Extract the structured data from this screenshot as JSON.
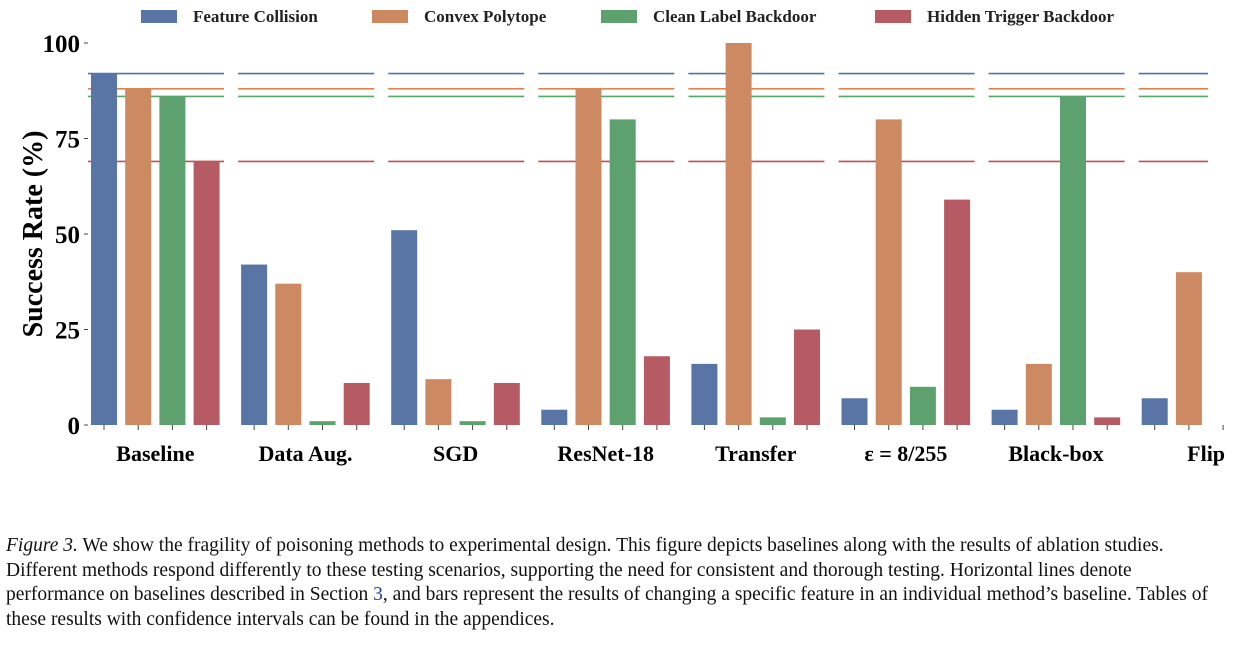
{
  "chart_data": {
    "type": "bar",
    "ylabel": "Success Rate (%)",
    "xlabel": "",
    "ylim": [
      0,
      100
    ],
    "yticks": [
      0,
      25,
      50,
      75,
      100
    ],
    "categories": [
      "Baseline",
      "Data Aug.",
      "SGD",
      "ResNet-18",
      "Transfer",
      "ε = 8/255",
      "Black-box",
      "Flip"
    ],
    "series": [
      {
        "name": "Feature Collision",
        "color": "#5975a6",
        "values": [
          92,
          42,
          51,
          4,
          16,
          7,
          4,
          7
        ]
      },
      {
        "name": "Convex Polytope",
        "color": "#cd8962",
        "values": [
          88,
          37,
          12,
          88,
          100,
          80,
          16,
          40
        ]
      },
      {
        "name": "Clean Label Backdoor",
        "color": "#5ca16e",
        "values": [
          86,
          1,
          1,
          80,
          2,
          10,
          86,
          null
        ]
      },
      {
        "name": "Hidden Trigger Backdoor",
        "color": "#b65b63",
        "values": [
          69,
          11,
          11,
          18,
          25,
          59,
          2,
          null
        ]
      }
    ],
    "baseline_lines": [
      {
        "series": "Feature Collision",
        "value": 92,
        "color": "#4c72b0"
      },
      {
        "series": "Convex Polytope",
        "value": 88,
        "color": "#dd8452"
      },
      {
        "series": "Clean Label Backdoor",
        "value": 86,
        "color": "#55a868"
      },
      {
        "series": "Hidden Trigger Backdoor",
        "value": 69,
        "color": "#c44e52"
      }
    ],
    "legend_position": "top",
    "grid": false
  },
  "caption": {
    "label": "Figure 3.",
    "text_before_ref": " We show the fragility of poisoning methods to experimental design. This figure depicts baselines along with the results of ablation studies. Different methods respond differently to these testing scenarios, supporting the need for consistent and thorough testing. Horizontal lines denote performance on baselines described in Section ",
    "ref": "3",
    "text_after_ref": ", and bars represent the results of changing a specific feature in an individual method’s baseline. Tables of these results with confidence intervals can be found in the appendices."
  }
}
